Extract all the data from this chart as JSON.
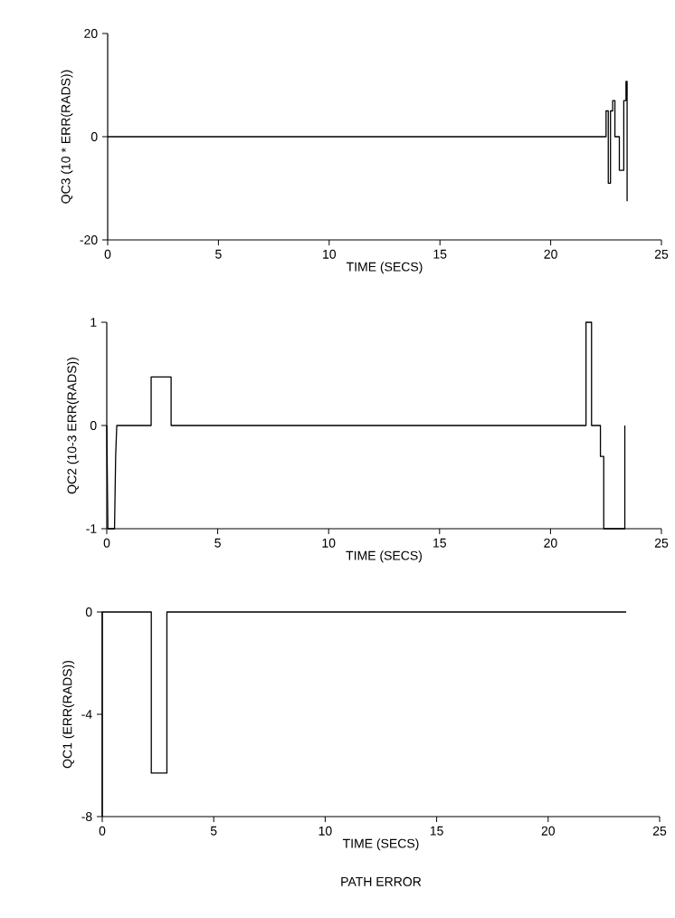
{
  "chart_data": [
    {
      "type": "line",
      "xlabel": "TIME (SECS)",
      "ylabel": "QC3 (10 * ERR(RADS))",
      "xlim": [
        0,
        25
      ],
      "ylim": [
        -20,
        20
      ],
      "xticks": [
        0,
        5,
        10,
        15,
        20,
        25
      ],
      "yticks": [
        -20,
        0,
        20
      ],
      "series": [
        {
          "color": "#000000",
          "x": [
            0,
            22.5,
            22.5,
            22.6,
            22.6,
            22.7,
            22.7,
            22.8,
            22.8,
            22.9,
            22.9,
            23.1,
            23.1,
            23.3,
            23.3,
            23.4,
            23.4,
            23.45,
            23.45
          ],
          "values": [
            0,
            0,
            5,
            5,
            -9,
            -9,
            5,
            5,
            7,
            7,
            0,
            0,
            -6.5,
            -6.5,
            7,
            7,
            10.7,
            10.7,
            -12.5
          ]
        }
      ]
    },
    {
      "type": "line",
      "xlabel": "TIME (SECS)",
      "ylabel": "QC2 (10-3 ERR(RADS))",
      "xlim": [
        0,
        25
      ],
      "ylim": [
        -1,
        1
      ],
      "xticks": [
        0,
        5,
        10,
        15,
        20,
        25
      ],
      "yticks": [
        -1,
        0,
        1
      ],
      "series": [
        {
          "color": "#000000",
          "x": [
            0,
            0.05,
            0.35,
            0.4,
            0.45,
            2.0,
            2.0,
            2.9,
            2.9,
            21.6,
            21.6,
            21.85,
            21.85,
            22.25,
            22.25,
            22.4,
            22.4,
            23.35,
            23.35
          ],
          "values": [
            0,
            -1,
            -1,
            -0.3,
            0,
            0,
            0.47,
            0.47,
            0,
            0,
            1,
            1,
            0,
            0,
            -0.3,
            -0.3,
            -1,
            -1,
            0
          ]
        }
      ]
    },
    {
      "type": "line",
      "xlabel": "TIME (SECS)",
      "ylabel": "QC1 (ERR(RADS))",
      "xlim": [
        0,
        25
      ],
      "ylim": [
        -8,
        0
      ],
      "xticks": [
        0,
        5,
        10,
        15,
        20,
        25
      ],
      "yticks": [
        -8,
        -4,
        0
      ],
      "annotations": [
        "PATH ERROR"
      ],
      "series": [
        {
          "color": "#000000",
          "x": [
            0,
            0,
            2.2,
            2.2,
            2.9,
            2.9,
            23.5
          ],
          "values": [
            -8,
            0,
            0,
            -6.3,
            -6.3,
            0,
            0
          ]
        }
      ]
    }
  ]
}
